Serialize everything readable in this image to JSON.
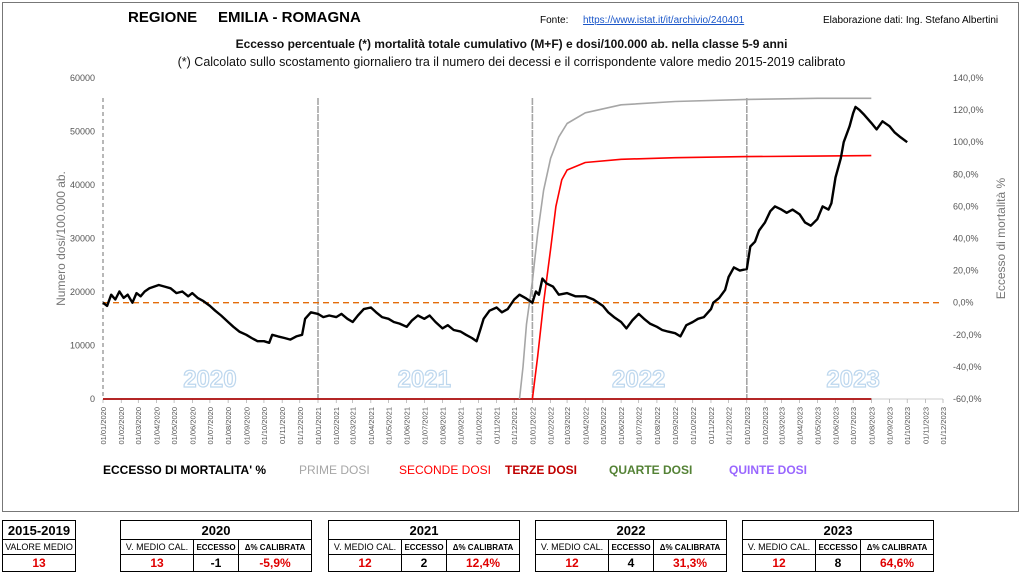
{
  "header": {
    "region_label": "REGIONE     EMILIA - ROMAGNA",
    "source_label": "Fonte:",
    "source_url": "https://www.istat.it/it/archivio/240401",
    "elaboration": "Elaborazione dati: Ing. Stefano Albertini"
  },
  "chart_data": {
    "type": "line",
    "title": "Eccesso percentuale (*) mortalità totale cumulativo (M+F) e dosi/100.000 ab. nella classe 5-9 anni",
    "subtitle": "(*) Calcolato sullo scostamento giornaliero tra il numero dei decessi e il corrispondente valore medio 2015-2019 calibrato",
    "ylabel_left": "Numero dosi/100.000 ab.",
    "ylabel_right": "Eccesso di mortalità %",
    "ylim_left": [
      0,
      60000
    ],
    "yticks_left": [
      "0",
      "10000",
      "20000",
      "30000",
      "40000",
      "50000",
      "60000"
    ],
    "ylim_right": [
      -60,
      140
    ],
    "yticks_right": [
      "-60,0%",
      "-40,0%",
      "-20,0%",
      "0,0%",
      "20,0%",
      "40,0%",
      "60,0%",
      "80,0%",
      "100,0%",
      "120,0%",
      "140,0%"
    ],
    "x_start": "2020-01-01",
    "x_end": "2023-12-01",
    "xtick_labels": [
      "01/01/2020",
      "01/02/2020",
      "01/03/2020",
      "01/04/2020",
      "01/05/2020",
      "01/06/2020",
      "01/07/2020",
      "01/08/2020",
      "01/09/2020",
      "01/10/2020",
      "01/11/2020",
      "01/12/2020",
      "01/01/2021",
      "01/02/2021",
      "01/03/2021",
      "01/04/2021",
      "01/05/2021",
      "01/06/2021",
      "01/07/2021",
      "01/08/2021",
      "01/09/2021",
      "01/10/2021",
      "01/11/2021",
      "01/12/2021",
      "01/01/2022",
      "01/02/2022",
      "01/03/2022",
      "01/04/2022",
      "01/05/2022",
      "01/06/2022",
      "01/07/2022",
      "01/08/2022",
      "01/09/2022",
      "01/10/2022",
      "01/11/2022",
      "01/12/2022",
      "01/01/2023",
      "01/02/2023",
      "01/03/2023",
      "01/04/2023",
      "01/05/2023",
      "01/06/2023",
      "01/07/2023",
      "01/08/2023",
      "01/09/2023",
      "01/10/2023",
      "01/11/2023",
      "01/12/2023"
    ],
    "year_labels": [
      "2020",
      "2021",
      "2022",
      "2023"
    ],
    "year_dividers": [
      "2020-01-01",
      "2021-01-01",
      "2022-01-01",
      "2023-01-01"
    ],
    "zero_reference_pct": 0,
    "colors": {
      "excess": "#000000",
      "first": "#a6a6a6",
      "second": "#ff0000",
      "third": "#c00000",
      "fourth": "#548235",
      "fifth": "#9966ff",
      "zero_line": "#e46c0a",
      "year_label": "#bdd7ee"
    },
    "series": [
      {
        "name": "ECCESSO DI MORTALITA' %",
        "axis": "right",
        "color": "#000000",
        "points": [
          [
            "2020-01-01",
            0
          ],
          [
            "2020-01-08",
            -2
          ],
          [
            "2020-01-15",
            5
          ],
          [
            "2020-01-22",
            2
          ],
          [
            "2020-01-29",
            7
          ],
          [
            "2020-02-05",
            3
          ],
          [
            "2020-02-12",
            5
          ],
          [
            "2020-02-20",
            0
          ],
          [
            "2020-02-27",
            6
          ],
          [
            "2020-03-05",
            4
          ],
          [
            "2020-03-12",
            7
          ],
          [
            "2020-03-20",
            9
          ],
          [
            "2020-03-28",
            10
          ],
          [
            "2020-04-05",
            11
          ],
          [
            "2020-04-15",
            10
          ],
          [
            "2020-04-25",
            9
          ],
          [
            "2020-05-05",
            6
          ],
          [
            "2020-05-15",
            7
          ],
          [
            "2020-05-25",
            4
          ],
          [
            "2020-06-01",
            6
          ],
          [
            "2020-06-10",
            3
          ],
          [
            "2020-06-20",
            1
          ],
          [
            "2020-07-01",
            -2
          ],
          [
            "2020-07-10",
            -5
          ],
          [
            "2020-07-20",
            -8
          ],
          [
            "2020-08-01",
            -12
          ],
          [
            "2020-08-10",
            -15
          ],
          [
            "2020-08-20",
            -18
          ],
          [
            "2020-09-01",
            -20
          ],
          [
            "2020-09-10",
            -22
          ],
          [
            "2020-09-20",
            -24
          ],
          [
            "2020-10-01",
            -24
          ],
          [
            "2020-10-10",
            -25
          ],
          [
            "2020-10-15",
            -20
          ],
          [
            "2020-10-25",
            -21
          ],
          [
            "2020-11-05",
            -22
          ],
          [
            "2020-11-15",
            -23
          ],
          [
            "2020-11-25",
            -21
          ],
          [
            "2020-12-05",
            -20
          ],
          [
            "2020-12-10",
            -10
          ],
          [
            "2020-12-20",
            -6
          ],
          [
            "2021-01-01",
            -7
          ],
          [
            "2021-01-10",
            -9
          ],
          [
            "2021-01-20",
            -8
          ],
          [
            "2021-02-01",
            -9
          ],
          [
            "2021-02-10",
            -7
          ],
          [
            "2021-02-20",
            -10
          ],
          [
            "2021-03-01",
            -12
          ],
          [
            "2021-03-10",
            -8
          ],
          [
            "2021-03-20",
            -4
          ],
          [
            "2021-04-01",
            -3
          ],
          [
            "2021-04-10",
            -6
          ],
          [
            "2021-04-20",
            -9
          ],
          [
            "2021-05-01",
            -10
          ],
          [
            "2021-05-10",
            -12
          ],
          [
            "2021-05-20",
            -13
          ],
          [
            "2021-06-01",
            -15
          ],
          [
            "2021-06-10",
            -11
          ],
          [
            "2021-06-20",
            -8
          ],
          [
            "2021-07-01",
            -10
          ],
          [
            "2021-07-10",
            -8
          ],
          [
            "2021-07-20",
            -12
          ],
          [
            "2021-08-01",
            -16
          ],
          [
            "2021-08-10",
            -14
          ],
          [
            "2021-08-20",
            -17
          ],
          [
            "2021-09-01",
            -18
          ],
          [
            "2021-09-10",
            -20
          ],
          [
            "2021-09-20",
            -22
          ],
          [
            "2021-09-28",
            -24
          ],
          [
            "2021-10-05",
            -16
          ],
          [
            "2021-10-10",
            -10
          ],
          [
            "2021-10-20",
            -5
          ],
          [
            "2021-11-01",
            -3
          ],
          [
            "2021-11-10",
            -6
          ],
          [
            "2021-11-20",
            -4
          ],
          [
            "2021-12-01",
            2
          ],
          [
            "2021-12-10",
            5
          ],
          [
            "2021-12-20",
            3
          ],
          [
            "2022-01-01",
            0
          ],
          [
            "2022-01-07",
            7
          ],
          [
            "2022-01-12",
            5
          ],
          [
            "2022-01-18",
            15
          ],
          [
            "2022-01-25",
            12
          ],
          [
            "2022-02-05",
            10
          ],
          [
            "2022-02-15",
            5
          ],
          [
            "2022-03-01",
            6
          ],
          [
            "2022-03-15",
            4
          ],
          [
            "2022-04-01",
            4
          ],
          [
            "2022-04-15",
            2
          ],
          [
            "2022-05-01",
            -2
          ],
          [
            "2022-05-10",
            -6
          ],
          [
            "2022-05-20",
            -9
          ],
          [
            "2022-06-01",
            -12
          ],
          [
            "2022-06-10",
            -16
          ],
          [
            "2022-06-20",
            -11
          ],
          [
            "2022-07-01",
            -7
          ],
          [
            "2022-07-10",
            -10
          ],
          [
            "2022-07-20",
            -13
          ],
          [
            "2022-08-01",
            -15
          ],
          [
            "2022-08-10",
            -17
          ],
          [
            "2022-08-20",
            -18
          ],
          [
            "2022-09-01",
            -19
          ],
          [
            "2022-09-10",
            -21
          ],
          [
            "2022-09-20",
            -14
          ],
          [
            "2022-10-01",
            -12
          ],
          [
            "2022-10-10",
            -10
          ],
          [
            "2022-10-20",
            -9
          ],
          [
            "2022-11-01",
            -4
          ],
          [
            "2022-11-05",
            0
          ],
          [
            "2022-11-15",
            3
          ],
          [
            "2022-11-25",
            8
          ],
          [
            "2022-12-01",
            16
          ],
          [
            "2022-12-10",
            22
          ],
          [
            "2022-12-20",
            20
          ],
          [
            "2023-01-01",
            21
          ],
          [
            "2023-01-07",
            35
          ],
          [
            "2023-01-15",
            38
          ],
          [
            "2023-01-22",
            45
          ],
          [
            "2023-02-01",
            50
          ],
          [
            "2023-02-10",
            57
          ],
          [
            "2023-02-18",
            60
          ],
          [
            "2023-03-01",
            58
          ],
          [
            "2023-03-10",
            56
          ],
          [
            "2023-03-20",
            58
          ],
          [
            "2023-04-01",
            55
          ],
          [
            "2023-04-10",
            50
          ],
          [
            "2023-04-20",
            48
          ],
          [
            "2023-05-01",
            52
          ],
          [
            "2023-05-10",
            60
          ],
          [
            "2023-05-20",
            58
          ],
          [
            "2023-05-25",
            62
          ],
          [
            "2023-06-01",
            78
          ],
          [
            "2023-06-10",
            90
          ],
          [
            "2023-06-15",
            100
          ],
          [
            "2023-06-25",
            110
          ],
          [
            "2023-07-01",
            118
          ],
          [
            "2023-07-05",
            122
          ],
          [
            "2023-07-12",
            120
          ],
          [
            "2023-07-20",
            117
          ],
          [
            "2023-08-01",
            112
          ],
          [
            "2023-08-10",
            108
          ],
          [
            "2023-08-20",
            113
          ],
          [
            "2023-09-01",
            110
          ],
          [
            "2023-09-10",
            106
          ],
          [
            "2023-09-20",
            103
          ],
          [
            "2023-10-01",
            100
          ]
        ]
      },
      {
        "name": "PRIME DOSI",
        "axis": "left",
        "color": "#a6a6a6",
        "points": [
          [
            "2021-12-10",
            0
          ],
          [
            "2021-12-16",
            6000
          ],
          [
            "2021-12-22",
            14000
          ],
          [
            "2022-01-01",
            22000
          ],
          [
            "2022-01-10",
            31000
          ],
          [
            "2022-01-20",
            39000
          ],
          [
            "2022-02-01",
            45000
          ],
          [
            "2022-02-15",
            49000
          ],
          [
            "2022-03-01",
            51500
          ],
          [
            "2022-04-01",
            53500
          ],
          [
            "2022-06-01",
            55000
          ],
          [
            "2022-09-01",
            55600
          ],
          [
            "2023-01-01",
            56000
          ],
          [
            "2023-05-01",
            56200
          ],
          [
            "2023-08-01",
            56200
          ]
        ]
      },
      {
        "name": "SECONDE DOSI",
        "axis": "left",
        "color": "#ff0000",
        "points": [
          [
            "2022-01-01",
            0
          ],
          [
            "2022-01-10",
            8000
          ],
          [
            "2022-01-20",
            18000
          ],
          [
            "2022-02-01",
            28000
          ],
          [
            "2022-02-10",
            36000
          ],
          [
            "2022-02-20",
            41000
          ],
          [
            "2022-03-01",
            42800
          ],
          [
            "2022-04-01",
            44200
          ],
          [
            "2022-06-01",
            44800
          ],
          [
            "2022-09-01",
            45100
          ],
          [
            "2023-01-01",
            45300
          ],
          [
            "2023-05-01",
            45400
          ],
          [
            "2023-08-01",
            45500
          ]
        ]
      },
      {
        "name": "TERZE DOSI",
        "axis": "left",
        "color": "#c00000",
        "points": [
          [
            "2020-01-01",
            0
          ],
          [
            "2023-08-01",
            0
          ]
        ]
      },
      {
        "name": "QUARTE DOSI",
        "axis": "left",
        "color": "#548235",
        "points": [
          [
            "2020-01-01",
            0
          ],
          [
            "2023-08-01",
            0
          ]
        ]
      },
      {
        "name": "QUINTE DOSI",
        "axis": "left",
        "color": "#9966ff",
        "points": [
          [
            "2020-01-01",
            0
          ],
          [
            "2023-08-01",
            0
          ]
        ]
      }
    ]
  },
  "summary": {
    "baseline": {
      "title": "2015-2019",
      "sub_label": "VALORE MEDIO",
      "value": "13"
    },
    "col_labels": {
      "medio": "V. MEDIO CAL.",
      "eccesso": "ECCESSO",
      "pct": "Δ% CALIBRATA"
    },
    "years": [
      {
        "year": "2020",
        "medio": "13",
        "eccesso": "-1",
        "pct": "-5,9%"
      },
      {
        "year": "2021",
        "medio": "12",
        "eccesso": "2",
        "pct": "12,4%"
      },
      {
        "year": "2022",
        "medio": "12",
        "eccesso": "4",
        "pct": "31,3%"
      },
      {
        "year": "2023",
        "medio": "12",
        "eccesso": "8",
        "pct": "64,6%"
      }
    ]
  }
}
